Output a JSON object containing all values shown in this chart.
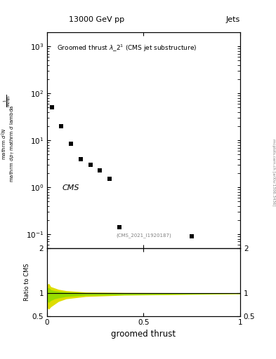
{
  "title_left": "13000 GeV pp",
  "title_right": "Jets",
  "plot_title": "Groomed thrust $\\lambda\\_2^1$ (CMS jet substructure)",
  "cms_label": "CMS",
  "ref_label": "(CMS_2021_I1920187)",
  "xlabel": "groomed thrust",
  "ylabel_line1": "mathrm d",
  "right_label": "mcplots.cern.ch [arXiv:1306.3436]",
  "data_x": [
    0.025,
    0.075,
    0.125,
    0.175,
    0.225,
    0.275,
    0.325,
    0.375,
    0.75
  ],
  "data_y": [
    50.0,
    20.0,
    8.5,
    4.0,
    3.0,
    2.3,
    1.5,
    0.14,
    0.09
  ],
  "background_color": "#ffffff",
  "data_color": "#000000",
  "green_color": "#99dd00",
  "yellow_color": "#dddd00",
  "ylim_main": [
    0.05,
    2000
  ],
  "ylim_ratio": [
    0.5,
    2.0
  ],
  "xlim": [
    0.0,
    1.0
  ],
  "ratio_rx": [
    0.0,
    0.01,
    0.02,
    0.04,
    0.06,
    0.1,
    0.2,
    0.4,
    1.0
  ],
  "ratio_yellow_upper": [
    1.2,
    1.22,
    1.15,
    1.12,
    1.09,
    1.06,
    1.03,
    1.02,
    1.01
  ],
  "ratio_yellow_lower": [
    0.68,
    0.65,
    0.7,
    0.76,
    0.82,
    0.88,
    0.93,
    0.96,
    0.99
  ],
  "ratio_green_upper": [
    1.12,
    1.13,
    1.08,
    1.06,
    1.05,
    1.03,
    1.015,
    1.01,
    1.005
  ],
  "ratio_green_lower": [
    0.82,
    0.8,
    0.84,
    0.88,
    0.9,
    0.93,
    0.96,
    0.97,
    0.995
  ]
}
